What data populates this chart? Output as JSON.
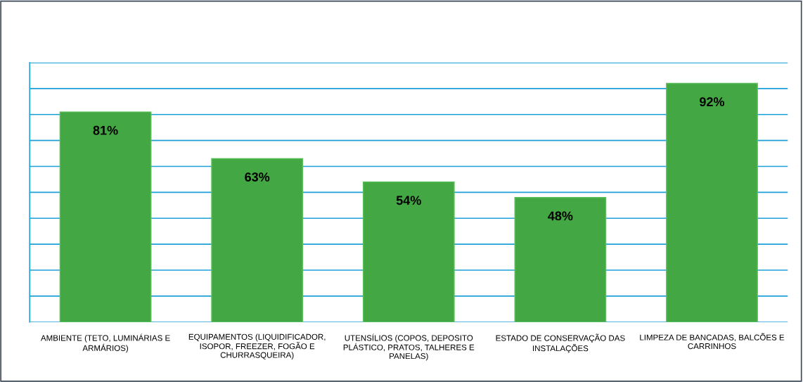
{
  "chart_data": {
    "type": "bar",
    "categories": [
      "AMBIENTE (TETO, LUMINÁRIAS E\nARMÁRIOS)",
      "EQUIPAMENTOS (LIQUIDIFICADOR,\nISOPOR, FREEZER, FOGÃO E\nCHURRASQUEIRA)",
      "UTENSÍLIOS (COPOS, DEPOSITO\nPLÁSTICO, PRATOS, TALHERES E\nPANELAS)",
      "ESTADO DE CONSERVAÇÃO DAS\nINSTALAÇÕES",
      "LIMPEZA DE BANCADAS, BALCÕES E\nCARRINHOS"
    ],
    "values": [
      81,
      63,
      54,
      48,
      92
    ],
    "value_labels": [
      "81%",
      "63%",
      "54%",
      "48%",
      "92%"
    ],
    "color": "#43a843",
    "ylim": [
      0,
      100
    ],
    "yticks": [
      {
        "value": 0,
        "label": null
      },
      {
        "value": 10,
        "label": null
      },
      {
        "value": 20,
        "label": null
      },
      {
        "value": 30,
        "label": null
      },
      {
        "value": 40,
        "label": null
      },
      {
        "value": 50,
        "label": null
      },
      {
        "value": 60,
        "label": null
      },
      {
        "value": 70,
        "label": null
      },
      {
        "value": 80,
        "label": null
      },
      {
        "value": 90,
        "label": null
      },
      {
        "value": 100,
        "label": null
      }
    ],
    "tick_labels": "x",
    "grid": "y",
    "legend": false
  }
}
